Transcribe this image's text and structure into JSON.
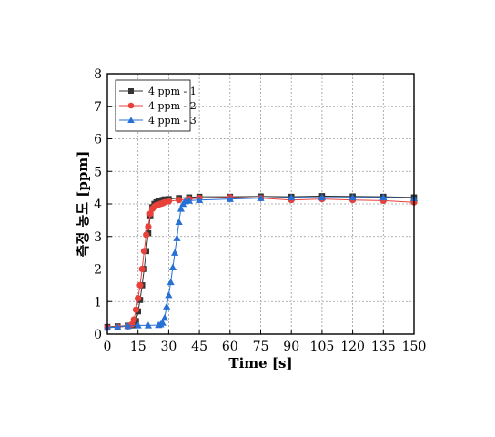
{
  "chart_data": {
    "type": "scatter",
    "xlabel": "Time [s]",
    "ylabel": "측정 농도 [ppm]",
    "xlim": [
      0,
      150
    ],
    "ylim": [
      0,
      8
    ],
    "xticks": [
      0,
      15,
      30,
      45,
      60,
      75,
      90,
      105,
      120,
      135,
      150
    ],
    "yticks": [
      0,
      1,
      2,
      3,
      4,
      5,
      6,
      7,
      8
    ],
    "grid": true,
    "legend_position": "top-left",
    "series": [
      {
        "name": "4 ppm - 1",
        "color": "#333333",
        "marker": "square",
        "x": [
          0,
          5,
          10,
          13,
          14,
          15,
          16,
          17,
          18,
          19,
          20,
          21,
          22,
          23,
          24,
          25,
          26,
          27,
          28,
          30,
          35,
          40,
          45,
          60,
          75,
          90,
          105,
          120,
          135,
          150
        ],
        "y": [
          0.22,
          0.24,
          0.26,
          0.27,
          0.4,
          0.7,
          1.05,
          1.5,
          2.0,
          2.55,
          3.1,
          3.65,
          3.9,
          4.0,
          4.05,
          4.08,
          4.1,
          4.12,
          4.14,
          4.15,
          4.18,
          4.2,
          4.22,
          4.22,
          4.23,
          4.22,
          4.24,
          4.23,
          4.22,
          4.2
        ]
      },
      {
        "name": "4 ppm - 2",
        "color": "#e8413a",
        "marker": "circle",
        "x": [
          0,
          5,
          10,
          12,
          13,
          14,
          15,
          16,
          17,
          18,
          19,
          20,
          21,
          22,
          23,
          24,
          25,
          26,
          27,
          28,
          30,
          35,
          40,
          45,
          60,
          75,
          90,
          105,
          120,
          135,
          150
        ],
        "y": [
          0.2,
          0.22,
          0.24,
          0.3,
          0.45,
          0.75,
          1.1,
          1.5,
          2.0,
          2.55,
          3.05,
          3.3,
          3.7,
          3.85,
          3.92,
          3.96,
          3.98,
          4.0,
          4.02,
          4.05,
          4.08,
          4.12,
          4.15,
          4.18,
          4.2,
          4.18,
          4.12,
          4.15,
          4.12,
          4.1,
          4.05
        ]
      },
      {
        "name": "4 ppm - 3",
        "color": "#2670d6",
        "marker": "triangle",
        "x": [
          0,
          5,
          10,
          15,
          20,
          25,
          26,
          27,
          28,
          29,
          30,
          31,
          32,
          33,
          34,
          35,
          36,
          37,
          38,
          40,
          45,
          60,
          75,
          90,
          105,
          120,
          135,
          150
        ],
        "y": [
          0.2,
          0.22,
          0.25,
          0.27,
          0.27,
          0.28,
          0.3,
          0.35,
          0.5,
          0.85,
          1.2,
          1.6,
          2.05,
          2.5,
          2.95,
          3.45,
          3.85,
          4.0,
          4.08,
          4.1,
          4.12,
          4.15,
          4.18,
          4.2,
          4.2,
          4.2,
          4.2,
          4.18
        ]
      }
    ]
  }
}
